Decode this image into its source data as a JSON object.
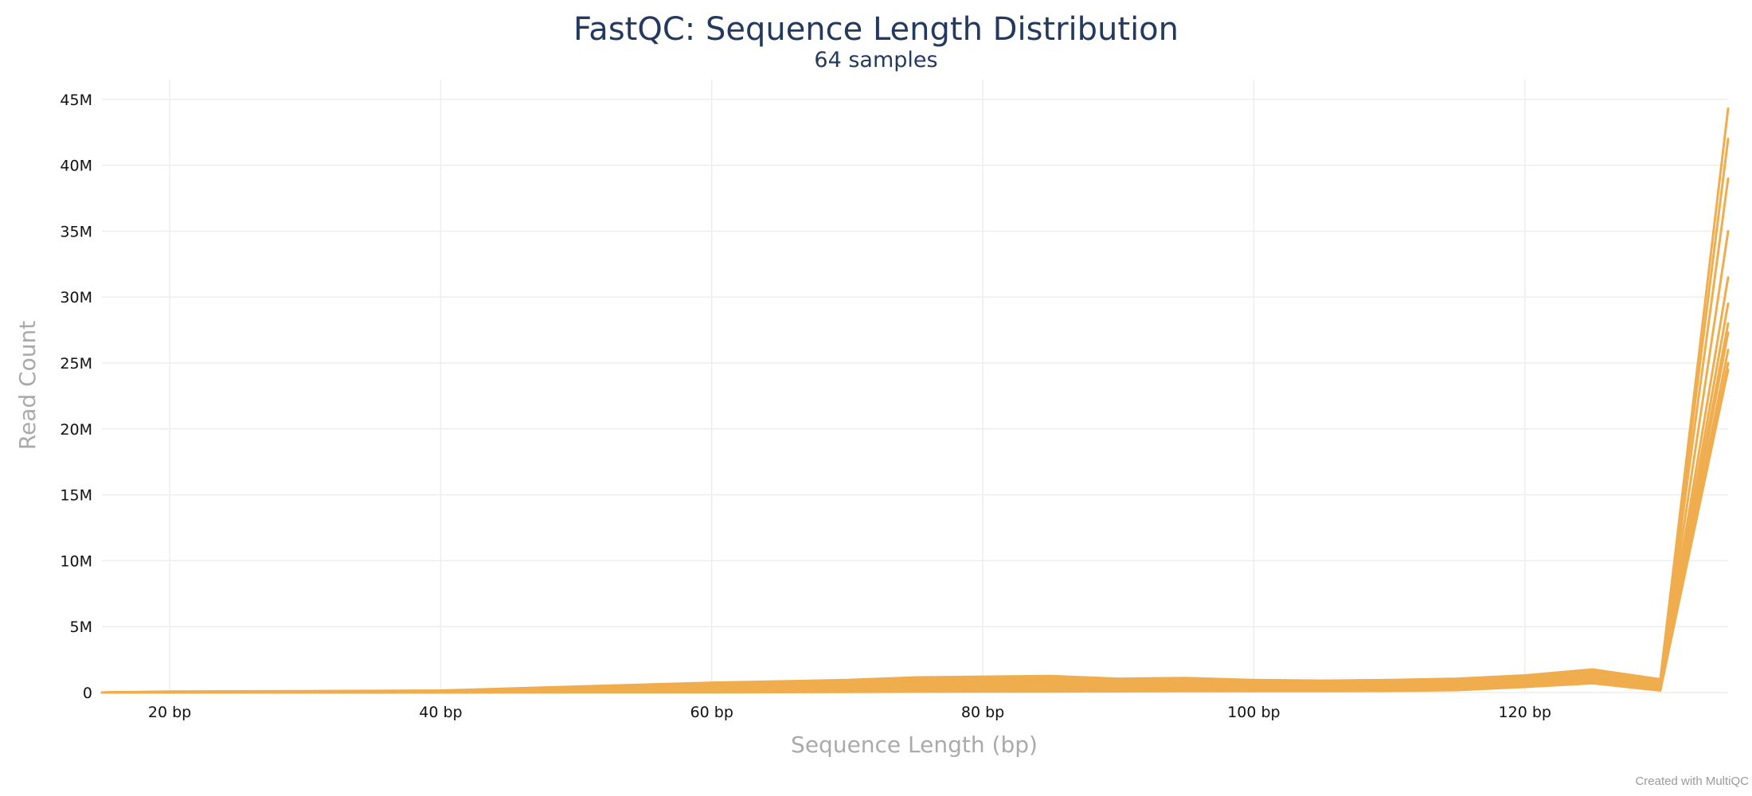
{
  "chart_data": {
    "type": "line",
    "title": "FastQC: Sequence Length Distribution",
    "subtitle": "64 samples",
    "xlabel": "Sequence Length (bp)",
    "ylabel": "Read Count",
    "xlim": [
      15,
      135
    ],
    "ylim": [
      0,
      46500000
    ],
    "x_ticks": [
      20,
      40,
      60,
      80,
      100,
      120
    ],
    "x_tick_labels": [
      "20 bp",
      "40 bp",
      "60 bp",
      "80 bp",
      "100 bp",
      "120 bp"
    ],
    "y_ticks": [
      0,
      5000000,
      10000000,
      15000000,
      20000000,
      25000000,
      30000000,
      35000000,
      40000000,
      45000000
    ],
    "y_tick_labels": [
      "0",
      "5M",
      "10M",
      "15M",
      "20M",
      "25M",
      "30M",
      "35M",
      "40M",
      "45M"
    ],
    "grid": true,
    "legend": "none",
    "series_color": "#f0ad4e",
    "x": [
      15,
      20,
      30,
      40,
      50,
      60,
      70,
      75,
      80,
      85,
      90,
      95,
      100,
      105,
      110,
      115,
      120,
      125,
      130,
      135
    ],
    "series": [
      {
        "values": [
          0,
          80000,
          100000,
          150000,
          450000,
          750000,
          950000,
          1150000,
          1200000,
          1250000,
          1050000,
          1100000,
          950000,
          900000,
          950000,
          1050000,
          1300000,
          1750000,
          1000000,
          44300000
        ]
      },
      {
        "values": [
          0,
          60000,
          80000,
          120000,
          380000,
          650000,
          850000,
          1000000,
          1050000,
          1100000,
          950000,
          1000000,
          850000,
          850000,
          880000,
          950000,
          1200000,
          1650000,
          900000,
          42000000
        ]
      },
      {
        "values": [
          0,
          50000,
          70000,
          100000,
          320000,
          560000,
          750000,
          900000,
          950000,
          1000000,
          850000,
          900000,
          800000,
          780000,
          820000,
          900000,
          1100000,
          1550000,
          800000,
          39000000
        ]
      },
      {
        "values": [
          0,
          40000,
          60000,
          90000,
          280000,
          480000,
          650000,
          800000,
          850000,
          900000,
          780000,
          820000,
          750000,
          720000,
          760000,
          850000,
          1050000,
          1450000,
          700000,
          35000000
        ]
      },
      {
        "values": [
          0,
          30000,
          50000,
          80000,
          230000,
          400000,
          560000,
          680000,
          720000,
          780000,
          700000,
          740000,
          680000,
          660000,
          700000,
          780000,
          980000,
          1350000,
          600000,
          31500000
        ]
      },
      {
        "values": [
          0,
          20000,
          40000,
          60000,
          180000,
          320000,
          460000,
          560000,
          600000,
          650000,
          600000,
          640000,
          600000,
          600000,
          640000,
          700000,
          900000,
          1200000,
          500000,
          29500000
        ]
      },
      {
        "values": [
          0,
          15000,
          30000,
          50000,
          140000,
          250000,
          380000,
          460000,
          500000,
          540000,
          520000,
          560000,
          520000,
          520000,
          560000,
          620000,
          820000,
          1100000,
          400000,
          28000000
        ]
      },
      {
        "values": [
          0,
          10000,
          20000,
          40000,
          100000,
          180000,
          300000,
          360000,
          400000,
          440000,
          430000,
          470000,
          440000,
          440000,
          480000,
          550000,
          750000,
          1000000,
          320000,
          27300000
        ]
      },
      {
        "values": [
          0,
          5000,
          10000,
          20000,
          60000,
          120000,
          200000,
          260000,
          300000,
          330000,
          330000,
          360000,
          340000,
          340000,
          380000,
          450000,
          650000,
          900000,
          250000,
          25000000
        ]
      },
      {
        "values": [
          0,
          0,
          5000,
          10000,
          30000,
          60000,
          120000,
          160000,
          190000,
          210000,
          220000,
          240000,
          230000,
          230000,
          260000,
          320000,
          520000,
          780000,
          180000,
          24500000
        ]
      },
      {
        "values": [
          0,
          0,
          0,
          0,
          10000,
          20000,
          40000,
          60000,
          70000,
          80000,
          90000,
          100000,
          100000,
          100000,
          120000,
          180000,
          420000,
          700000,
          150000,
          26000000
        ]
      }
    ]
  },
  "footer": {
    "credit": "Created with MultiQC"
  }
}
